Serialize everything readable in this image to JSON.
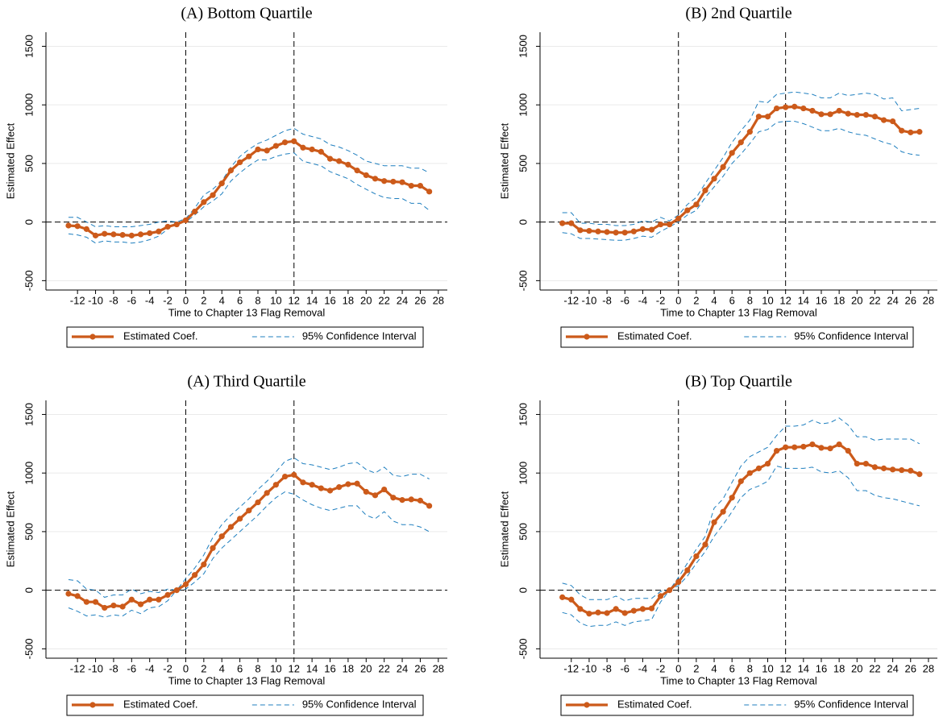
{
  "chart_data": [
    {
      "type": "line",
      "title": "(A) Bottom Quartile",
      "x_label": "Time to Chapter 13 Flag Removal",
      "y_label": "Estimated Effect",
      "x": [
        -13,
        -12,
        -11,
        -10,
        -9,
        -8,
        -7,
        -6,
        -5,
        -4,
        -3,
        -2,
        -1,
        0,
        1,
        2,
        3,
        4,
        5,
        6,
        7,
        8,
        9,
        10,
        11,
        12,
        13,
        14,
        15,
        16,
        17,
        18,
        19,
        20,
        21,
        22,
        23,
        24,
        25,
        26,
        27
      ],
      "series": [
        {
          "name": "Estimated Coef.",
          "color": "#cc5a1a",
          "values": [
            -30,
            -35,
            -60,
            -115,
            -100,
            -105,
            -110,
            -115,
            -105,
            -95,
            -80,
            -40,
            -20,
            15,
            90,
            170,
            230,
            330,
            440,
            510,
            560,
            620,
            610,
            650,
            680,
            690,
            635,
            620,
            600,
            540,
            520,
            490,
            440,
            400,
            370,
            350,
            345,
            340,
            310,
            310,
            260
          ]
        },
        {
          "name": "95% Confidence Interval",
          "color": "#1f7fbf",
          "upper": [
            40,
            40,
            0,
            -40,
            -30,
            -40,
            -40,
            -40,
            -30,
            -20,
            0,
            10,
            0,
            30,
            120,
            230,
            280,
            350,
            470,
            560,
            620,
            670,
            700,
            740,
            780,
            800,
            750,
            730,
            710,
            660,
            640,
            610,
            570,
            520,
            500,
            480,
            480,
            480,
            460,
            460,
            420
          ],
          "lower": [
            -100,
            -110,
            -130,
            -180,
            -160,
            -170,
            -170,
            -180,
            -170,
            -150,
            -120,
            -60,
            0,
            0,
            60,
            130,
            180,
            240,
            350,
            420,
            480,
            530,
            530,
            560,
            580,
            590,
            520,
            500,
            480,
            430,
            400,
            370,
            320,
            280,
            240,
            210,
            200,
            200,
            160,
            160,
            100
          ]
        }
      ],
      "xlim": [
        -15.5,
        29
      ],
      "ylim": [
        -580,
        1620
      ],
      "xticks": [
        -12,
        -10,
        -8,
        -6,
        -4,
        -2,
        0,
        2,
        4,
        6,
        8,
        10,
        12,
        14,
        16,
        18,
        20,
        22,
        24,
        26,
        28
      ],
      "yticks": [
        -500,
        0,
        500,
        1000,
        1500
      ],
      "vlines": [
        0,
        12
      ],
      "hlines": [
        0
      ],
      "grid": true
    },
    {
      "type": "line",
      "title": "(B) 2nd Quartile",
      "x_label": "Time to Chapter 13 Flag Removal",
      "y_label": "Estimated Effect",
      "x": [
        -13,
        -12,
        -11,
        -10,
        -9,
        -8,
        -7,
        -6,
        -5,
        -4,
        -3,
        -2,
        -1,
        0,
        1,
        2,
        3,
        4,
        5,
        6,
        7,
        8,
        9,
        10,
        11,
        12,
        13,
        14,
        15,
        16,
        17,
        18,
        19,
        20,
        21,
        22,
        23,
        24,
        25,
        26,
        27
      ],
      "series": [
        {
          "name": "Estimated Coef.",
          "color": "#cc5a1a",
          "values": [
            -10,
            -10,
            -70,
            -75,
            -80,
            -85,
            -90,
            -90,
            -80,
            -60,
            -65,
            -20,
            -20,
            30,
            100,
            150,
            270,
            370,
            470,
            590,
            680,
            770,
            900,
            900,
            970,
            980,
            985,
            970,
            950,
            920,
            920,
            950,
            925,
            915,
            915,
            900,
            870,
            860,
            780,
            765,
            770
          ]
        },
        {
          "name": "95% Confidence Interval",
          "color": "#1f7fbf",
          "upper": [
            80,
            80,
            -10,
            -10,
            -20,
            -20,
            -30,
            -30,
            -20,
            10,
            0,
            40,
            10,
            60,
            150,
            210,
            330,
            440,
            550,
            680,
            780,
            870,
            1030,
            1020,
            1090,
            1100,
            1110,
            1100,
            1090,
            1060,
            1060,
            1100,
            1080,
            1090,
            1100,
            1090,
            1050,
            1060,
            950,
            960,
            970
          ],
          "lower": [
            -90,
            -100,
            -140,
            -140,
            -145,
            -150,
            -155,
            -155,
            -140,
            -120,
            -130,
            -80,
            -40,
            0,
            60,
            100,
            210,
            300,
            390,
            500,
            580,
            670,
            770,
            790,
            850,
            860,
            860,
            840,
            810,
            780,
            780,
            800,
            770,
            750,
            740,
            710,
            680,
            660,
            600,
            580,
            570
          ]
        }
      ],
      "xlim": [
        -15.5,
        29
      ],
      "ylim": [
        -580,
        1620
      ],
      "xticks": [
        -12,
        -10,
        -8,
        -6,
        -4,
        -2,
        0,
        2,
        4,
        6,
        8,
        10,
        12,
        14,
        16,
        18,
        20,
        22,
        24,
        26,
        28
      ],
      "yticks": [
        -500,
        0,
        500,
        1000,
        1500
      ],
      "vlines": [
        0,
        12
      ],
      "hlines": [
        0
      ],
      "grid": true
    },
    {
      "type": "line",
      "title": "(A) Third Quartile",
      "x_label": "Time to Chapter 13 Flag Removal",
      "y_label": "Estimated Effect",
      "x": [
        -13,
        -12,
        -11,
        -10,
        -9,
        -8,
        -7,
        -6,
        -5,
        -4,
        -3,
        -2,
        -1,
        0,
        1,
        2,
        3,
        4,
        5,
        6,
        7,
        8,
        9,
        10,
        11,
        12,
        13,
        14,
        15,
        16,
        17,
        18,
        19,
        20,
        21,
        22,
        23,
        24,
        25,
        26,
        27
      ],
      "series": [
        {
          "name": "Estimated Coef.",
          "color": "#cc5a1a",
          "values": [
            -30,
            -50,
            -100,
            -100,
            -150,
            -130,
            -140,
            -80,
            -120,
            -80,
            -80,
            -40,
            0,
            50,
            130,
            220,
            360,
            460,
            540,
            610,
            680,
            750,
            830,
            900,
            970,
            985,
            920,
            900,
            870,
            850,
            880,
            905,
            910,
            840,
            810,
            860,
            790,
            770,
            775,
            765,
            720
          ]
        },
        {
          "name": "95% Confidence Interval",
          "color": "#1f7fbf",
          "upper": [
            90,
            80,
            10,
            0,
            -60,
            -40,
            -40,
            10,
            -30,
            -10,
            -20,
            10,
            0,
            100,
            190,
            300,
            450,
            560,
            640,
            710,
            780,
            860,
            930,
            1010,
            1100,
            1130,
            1080,
            1070,
            1050,
            1030,
            1050,
            1080,
            1090,
            1030,
            1000,
            1050,
            980,
            970,
            990,
            990,
            950
          ],
          "lower": [
            -150,
            -180,
            -220,
            -210,
            -230,
            -210,
            -220,
            -170,
            -200,
            -150,
            -140,
            -90,
            0,
            10,
            70,
            140,
            270,
            360,
            430,
            500,
            570,
            640,
            720,
            790,
            840,
            820,
            770,
            730,
            700,
            680,
            700,
            720,
            720,
            640,
            610,
            670,
            590,
            560,
            560,
            540,
            500
          ]
        }
      ],
      "xlim": [
        -15.5,
        29
      ],
      "ylim": [
        -580,
        1620
      ],
      "xticks": [
        -12,
        -10,
        -8,
        -6,
        -4,
        -2,
        0,
        2,
        4,
        6,
        8,
        10,
        12,
        14,
        16,
        18,
        20,
        22,
        24,
        26,
        28
      ],
      "yticks": [
        -500,
        0,
        500,
        1000,
        1500
      ],
      "vlines": [
        0,
        12
      ],
      "hlines": [
        0
      ],
      "grid": true
    },
    {
      "type": "line",
      "title": "(B) Top Quartile",
      "x_label": "Time to Chapter 13 Flag Removal",
      "y_label": "Estimated Effect",
      "x": [
        -13,
        -12,
        -11,
        -10,
        -9,
        -8,
        -7,
        -6,
        -5,
        -4,
        -3,
        -2,
        -1,
        0,
        1,
        2,
        3,
        4,
        5,
        6,
        7,
        8,
        9,
        10,
        11,
        12,
        13,
        14,
        15,
        16,
        17,
        18,
        19,
        20,
        21,
        22,
        23,
        24,
        25,
        26,
        27
      ],
      "series": [
        {
          "name": "Estimated Coef.",
          "color": "#cc5a1a",
          "values": [
            -60,
            -80,
            -160,
            -200,
            -190,
            -195,
            -160,
            -195,
            -175,
            -160,
            -155,
            -50,
            0,
            70,
            170,
            290,
            390,
            580,
            670,
            790,
            930,
            1000,
            1040,
            1080,
            1190,
            1220,
            1220,
            1225,
            1245,
            1215,
            1210,
            1245,
            1190,
            1080,
            1080,
            1050,
            1040,
            1030,
            1025,
            1020,
            990
          ]
        },
        {
          "name": "95% Confidence Interval",
          "color": "#1f7fbf",
          "upper": [
            60,
            40,
            -40,
            -80,
            -80,
            -80,
            -50,
            -90,
            -70,
            -70,
            -70,
            -10,
            0,
            110,
            230,
            350,
            460,
            700,
            780,
            920,
            1060,
            1140,
            1180,
            1220,
            1320,
            1400,
            1400,
            1410,
            1450,
            1420,
            1430,
            1470,
            1410,
            1310,
            1310,
            1280,
            1290,
            1290,
            1290,
            1290,
            1250
          ],
          "lower": [
            -190,
            -210,
            -280,
            -310,
            -300,
            -300,
            -270,
            -300,
            -270,
            -260,
            -250,
            -100,
            0,
            40,
            120,
            230,
            330,
            460,
            560,
            670,
            790,
            860,
            890,
            930,
            1060,
            1040,
            1040,
            1040,
            1050,
            1010,
            1000,
            1020,
            960,
            850,
            850,
            810,
            790,
            780,
            760,
            740,
            720
          ]
        }
      ],
      "xlim": [
        -15.5,
        29
      ],
      "ylim": [
        -580,
        1620
      ],
      "xticks": [
        -12,
        -10,
        -8,
        -6,
        -4,
        -2,
        0,
        2,
        4,
        6,
        8,
        10,
        12,
        14,
        16,
        18,
        20,
        22,
        24,
        26,
        28
      ],
      "yticks": [
        -500,
        0,
        500,
        1000,
        1500
      ],
      "vlines": [
        0,
        12
      ],
      "hlines": [
        0
      ],
      "grid": true
    }
  ]
}
